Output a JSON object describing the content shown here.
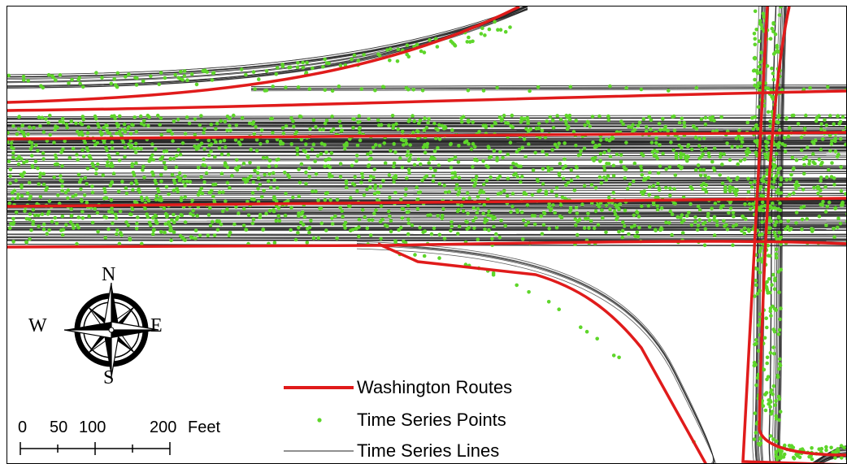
{
  "compass": {
    "north": "N",
    "south": "S",
    "east": "E",
    "west": "W"
  },
  "scale_bar": {
    "ticks": [
      "0",
      "50",
      "100",
      "200"
    ],
    "unit": "Feet"
  },
  "legend": [
    {
      "label": "Washington Routes",
      "symbol": "red-thick-line",
      "color": "#e01b1b"
    },
    {
      "label": "Time Series Points",
      "symbol": "green-dot",
      "color": "#5ed62a"
    },
    {
      "label": "Time Series Lines",
      "symbol": "thin-gray-line",
      "color": "#222222"
    }
  ],
  "colors": {
    "routes": "#e01b1b",
    "points": "#5ed62a",
    "lines": "#222222"
  }
}
